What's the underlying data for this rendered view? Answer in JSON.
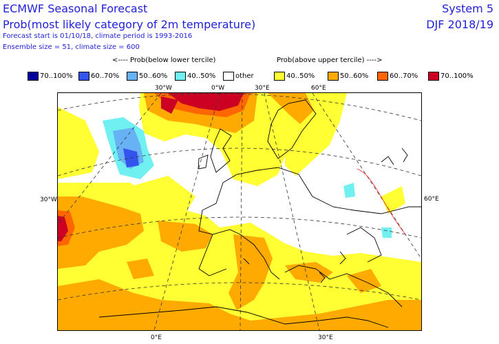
{
  "header": {
    "title": "ECMWF Seasonal Forecast",
    "subtitle": "Prob(most likely category of 2m temperature)",
    "forecast_line": "Forecast start is 01/10/18, climate period is 1993-2016",
    "ensemble_line": "Ensemble size = 51, climate size = 600",
    "system": "System 5",
    "season": "DJF 2018/19"
  },
  "direction_labels": {
    "below": "<---- Prob(below lower tercile)",
    "above": "Prob(above upper tercile) ---->"
  },
  "legend": [
    {
      "label": "70..100%",
      "color": "#00009e"
    },
    {
      "label": "60..70%",
      "color": "#3355ee"
    },
    {
      "label": "50..60%",
      "color": "#66b2f5"
    },
    {
      "label": "40..50%",
      "color": "#70f0f0"
    },
    {
      "label": "other",
      "color": "#ffffff"
    },
    {
      "label": "40..50%",
      "color": "#ffff33"
    },
    {
      "label": "50..60%",
      "color": "#ffaa00"
    },
    {
      "label": "60..70%",
      "color": "#ff6600"
    },
    {
      "label": "70..100%",
      "color": "#cc0022"
    }
  ],
  "map_labels": {
    "top_30w": "30°W",
    "top_0": "0°W",
    "top_30e": "30°E",
    "top_60e": "60°E",
    "left_30w": "30°W",
    "right_60e": "60°E",
    "bottom_0": "0°E",
    "bottom_30e": "30°E"
  }
}
